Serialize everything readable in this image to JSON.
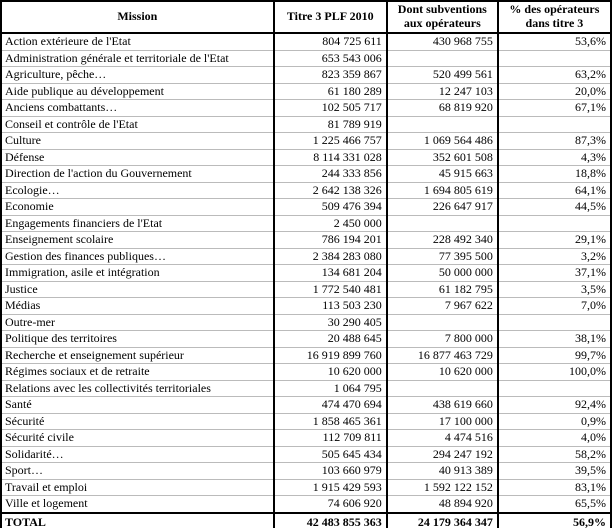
{
  "table": {
    "columns": [
      "Mission",
      "Titre 3 PLF 2010",
      "Dont subventions aux opérateurs",
      "% des opérateurs dans titre 3"
    ],
    "rows": [
      [
        "Action extérieure de l'Etat",
        "804 725 611",
        "430 968 755",
        "53,6%"
      ],
      [
        "Administration générale et territoriale de l'Etat",
        "653 543 006",
        "",
        ""
      ],
      [
        "Agriculture, pêche…",
        "823 359 867",
        "520 499 561",
        "63,2%"
      ],
      [
        "Aide publique au développement",
        "61 180 289",
        "12 247 103",
        "20,0%"
      ],
      [
        "Anciens combattants…",
        "102 505 717",
        "68 819 920",
        "67,1%"
      ],
      [
        "Conseil et contrôle de l'Etat",
        "81 789 919",
        "",
        ""
      ],
      [
        "Culture",
        "1 225 466 757",
        "1 069 564 486",
        "87,3%"
      ],
      [
        "Défense",
        "8 114 331 028",
        "352 601 508",
        "4,3%"
      ],
      [
        "Direction de l'action du Gouvernement",
        "244 333 856",
        "45 915 663",
        "18,8%"
      ],
      [
        "Ecologie…",
        "2 642 138 326",
        "1 694 805 619",
        "64,1%"
      ],
      [
        "Economie",
        "509 476 394",
        "226 647 917",
        "44,5%"
      ],
      [
        "Engagements financiers de l'Etat",
        "2 450 000",
        "",
        ""
      ],
      [
        "Enseignement scolaire",
        "786 194 201",
        "228 492 340",
        "29,1%"
      ],
      [
        "Gestion des finances publiques…",
        "2 384 283 080",
        "77 395 500",
        "3,2%"
      ],
      [
        "Immigration, asile et intégration",
        "134 681 204",
        "50 000 000",
        "37,1%"
      ],
      [
        "Justice",
        "1 772 540 481",
        "61 182 795",
        "3,5%"
      ],
      [
        "Médias",
        "113 503 230",
        "7 967 622",
        "7,0%"
      ],
      [
        "Outre-mer",
        "30 290 405",
        "",
        ""
      ],
      [
        "Politique des territoires",
        "20 488 645",
        "7 800 000",
        "38,1%"
      ],
      [
        "Recherche et enseignement supérieur",
        "16 919 899 760",
        "16 877 463 729",
        "99,7%"
      ],
      [
        "Régimes sociaux et de retraite",
        "10 620 000",
        "10 620 000",
        "100,0%"
      ],
      [
        "Relations avec les collectivités territoriales",
        "1 064 795",
        "",
        ""
      ],
      [
        "Santé",
        "474 470 694",
        "438 619 660",
        "92,4%"
      ],
      [
        "Sécurité",
        "1 858 465 361",
        "17 100 000",
        "0,9%"
      ],
      [
        "Sécurité civile",
        "112 709 811",
        "4 474 516",
        "4,0%"
      ],
      [
        "Solidarité…",
        "505 645 434",
        "294 247 192",
        "58,2%"
      ],
      [
        "Sport…",
        "103 660 979",
        "40 913 389",
        "39,5%"
      ],
      [
        "Travail et emploi",
        "1 915 429 593",
        "1 592 122 152",
        "83,1%"
      ],
      [
        "Ville et logement",
        "74 606 920",
        "48 894 920",
        "65,5%"
      ]
    ],
    "total": {
      "label": "TOTAL",
      "titre3": "42 483 855 363",
      "subventions": "24 179 364 347",
      "pct": "56,9%"
    }
  },
  "colors": {
    "outer_border": "#000000",
    "row_separator": "#bbbbbb",
    "background": "#ffffff",
    "text": "#000000"
  }
}
